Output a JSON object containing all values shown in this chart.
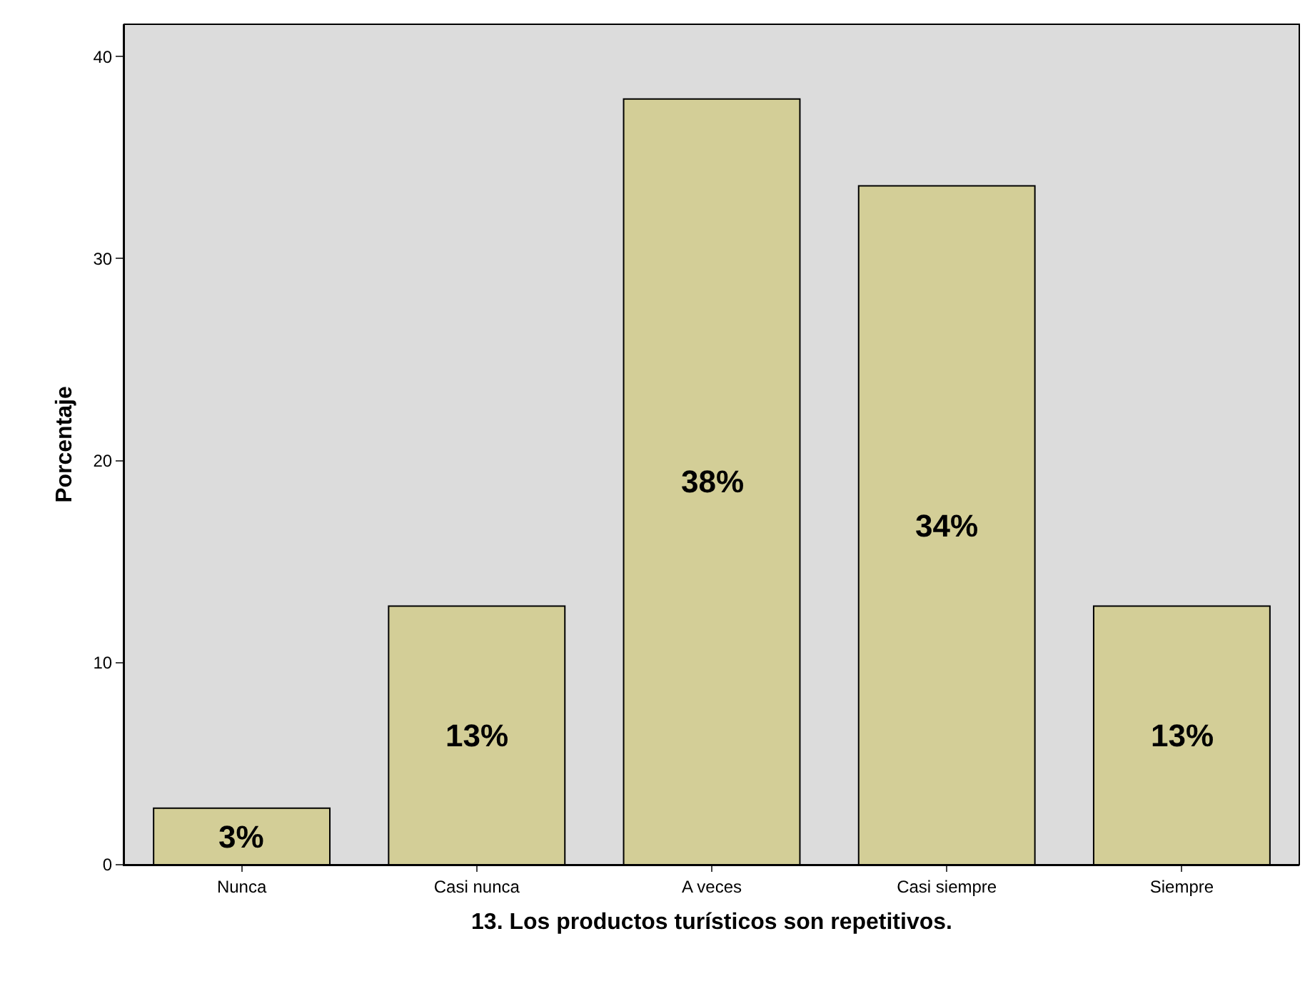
{
  "chart_data": {
    "type": "bar",
    "xlabel": "13. Los productos turísticos son repetitivos.",
    "ylabel": "Porcentaje",
    "categories": [
      "Nunca",
      "Casi nunca",
      "A veces",
      "Casi siempre",
      "Siempre"
    ],
    "values": [
      2.8,
      12.8,
      37.9,
      33.6,
      12.8
    ],
    "value_labels": [
      "3%",
      "13%",
      "38%",
      "34%",
      "13%"
    ],
    "color": "#d3ce97",
    "ylim": [
      0,
      41.6
    ],
    "yticks": [
      0,
      10,
      20,
      30,
      40
    ],
    "grid": false,
    "legend": false
  }
}
